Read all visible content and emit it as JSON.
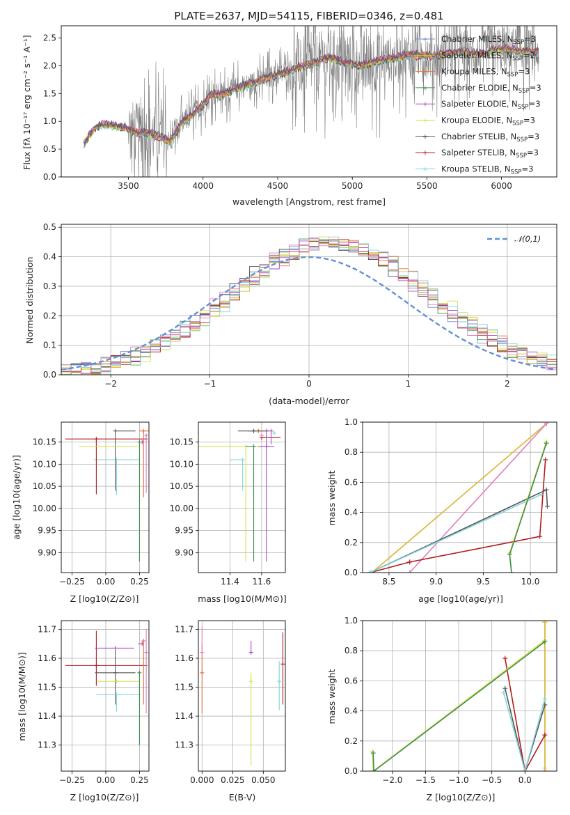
{
  "colors": {
    "chabrier_miles": "#6c8ed6",
    "salpeter_miles": "#d9c23a",
    "kroupa_miles": "#e0703a",
    "chabrier_elodie": "#3f8f52",
    "salpeter_elodie": "#a64bc4",
    "kroupa_elodie": "#d6e04a",
    "chabrier_stelib": "#555555",
    "salpeter_stelib": "#b01c1c",
    "kroupa_stelib": "#7fd6df",
    "pink": "#e07fb8",
    "data_grey": "#808080",
    "normal_curve": "#6190d6",
    "grid": "#b0b0b0"
  },
  "chart_data": [
    {
      "id": "spectrum",
      "type": "line",
      "title": "PLATE=2637, MJD=54115, FIBERID=0346, z=0.481",
      "xlabel": "wavelength [Angstrom, rest frame]",
      "ylabel": "Flux [fλ 10⁻¹⁷ erg cm⁻² s⁻¹ A⁻¹]",
      "xlim": [
        3050,
        6370
      ],
      "ylim": [
        0,
        2.72
      ],
      "xticks": [
        3500,
        4000,
        4500,
        5000,
        5500,
        6000
      ],
      "yticks": [
        0.0,
        0.5,
        1.0,
        1.5,
        2.0,
        2.5
      ],
      "grid": false,
      "legend_position": "right",
      "legend": [
        "Chabrier MILES, N_SSP=3",
        "Salpeter MILES, N_SSP=2",
        "Kroupa MILES, N_SSP=3",
        "Chabrier ELODIE, N_SSP=3",
        "Salpeter ELODIE, N_SSP=3",
        "Kroupa ELODIE, N_SSP=3",
        "Chabrier STELIB, N_SSP=3",
        "Salpeter STELIB, N_SSP=3",
        "Kroupa STELIB, N_SSP=3"
      ],
      "continuum": {
        "x": [
          3200,
          3240,
          3280,
          3330,
          3400,
          3480,
          3560,
          3640,
          3720,
          3780,
          3850,
          3930,
          4000,
          4060,
          4150,
          4250,
          4350,
          4450,
          4550,
          4650,
          4750,
          4850,
          4950,
          5050,
          5150,
          5250,
          5350,
          5450,
          5550,
          5650,
          5750,
          5850,
          5950,
          6050,
          6150,
          6250
        ],
        "y": [
          0.58,
          0.75,
          0.88,
          0.95,
          0.92,
          0.88,
          0.8,
          0.78,
          0.72,
          0.62,
          0.95,
          1.12,
          1.3,
          1.48,
          1.5,
          1.62,
          1.7,
          1.8,
          1.88,
          1.98,
          2.05,
          2.15,
          2.05,
          2.0,
          2.08,
          2.12,
          2.18,
          2.2,
          2.18,
          2.22,
          2.25,
          2.2,
          2.28,
          2.3,
          2.25,
          2.25
        ]
      }
    },
    {
      "id": "residuals",
      "type": "line",
      "xlabel": "(data-model)/error",
      "ylabel": "Normed distribution",
      "xlim": [
        -2.5,
        2.5
      ],
      "ylim": [
        0,
        0.51
      ],
      "xticks": [
        -2,
        -1,
        0,
        1,
        2
      ],
      "yticks": [
        0.0,
        0.1,
        0.2,
        0.3,
        0.4,
        0.5
      ],
      "grid": true,
      "legend_position": "top-right",
      "legend": [
        "𝒩(0,1)"
      ],
      "normal": {
        "mean": 0,
        "sigma": 1
      }
    },
    {
      "id": "age_vs_Z",
      "type": "scatter",
      "xlabel": "Z [log10(Z/Z⊙)]",
      "ylabel": "age  [log10(age/yr)]",
      "xlim": [
        -0.33,
        0.32
      ],
      "ylim": [
        9.855,
        10.195
      ],
      "xticks": [
        -0.25,
        0.0,
        0.25
      ],
      "yticks": [
        9.9,
        9.95,
        10.0,
        10.05,
        10.1,
        10.15
      ],
      "grid": true
    },
    {
      "id": "age_vs_mass",
      "type": "scatter",
      "xlabel": "mass [log10(M/M⊙)]",
      "ylabel": "",
      "xlim": [
        11.2,
        11.75
      ],
      "ylim": [
        9.855,
        10.195
      ],
      "xticks": [
        11.4,
        11.6
      ],
      "yticks": [
        9.9,
        9.95,
        10.0,
        10.05,
        10.1,
        10.15
      ],
      "grid": true
    },
    {
      "id": "weight_vs_age",
      "type": "line",
      "xlabel": "age  [log10(age/yr)]",
      "ylabel": "mass weight",
      "xlim": [
        8.22,
        10.28
      ],
      "ylim": [
        0,
        1.0
      ],
      "xticks": [
        8.5,
        9.0,
        9.5,
        10.0
      ],
      "yticks": [
        0.0,
        0.2,
        0.4,
        0.6,
        0.8,
        1.0
      ],
      "grid": true
    },
    {
      "id": "mass_vs_Z",
      "type": "scatter",
      "xlabel": "Z [log10(Z/Z⊙)]",
      "ylabel": "mass [log10(M/M⊙)]",
      "xlim": [
        -0.33,
        0.32
      ],
      "ylim": [
        11.21,
        11.73
      ],
      "xticks": [
        -0.25,
        0.0,
        0.25
      ],
      "yticks": [
        11.3,
        11.4,
        11.5,
        11.6,
        11.7
      ],
      "grid": true
    },
    {
      "id": "mass_vs_ebv",
      "type": "scatter",
      "xlabel": "E(B-V)",
      "ylabel": "",
      "xlim": [
        -0.003,
        0.068
      ],
      "ylim": [
        11.21,
        11.73
      ],
      "xticks": [
        0.0,
        0.025,
        0.05
      ],
      "yticks": [
        11.3,
        11.4,
        11.5,
        11.6,
        11.7
      ],
      "grid": true
    },
    {
      "id": "weight_vs_Z",
      "type": "line",
      "xlabel": "Z [log10(Z/Z⊙)]",
      "ylabel": "mass weight",
      "xlim": [
        -2.45,
        0.48
      ],
      "ylim": [
        0,
        1.0
      ],
      "xticks": [
        -2.0,
        -1.5,
        -1.0,
        -0.5,
        0.0
      ],
      "yticks": [
        0.0,
        0.2,
        0.4,
        0.6,
        0.8,
        1.0
      ],
      "grid": true
    }
  ],
  "model_points": {
    "age_vs_Z": [
      {
        "c": "kroupa_stelib",
        "x": 0.08,
        "y": 10.11,
        "xerr": [
          0.17,
          0.17
        ],
        "yerr": [
          0.08,
          0.0
        ]
      },
      {
        "c": "chabrier_stelib",
        "x": 0.07,
        "y": 10.175,
        "xerr": [
          0.0,
          0.15
        ],
        "yerr": [
          0.135,
          0.0
        ]
      },
      {
        "c": "salpeter_stelib",
        "x": -0.07,
        "y": 10.157,
        "xerr": [
          0.23,
          0.38
        ],
        "yerr": [
          0.125,
          0.0
        ]
      },
      {
        "c": "kroupa_elodie",
        "x": 0.0,
        "y": 10.14,
        "xerr": [
          0.2,
          0.25
        ],
        "yerr": [
          0.0,
          0.0
        ]
      },
      {
        "c": "chabrier_elodie",
        "x": 0.25,
        "y": 10.15,
        "xerr": [
          0.0,
          0.0
        ],
        "yerr": [
          0.27,
          0.0
        ]
      },
      {
        "c": "kroupa_miles",
        "x": 0.28,
        "y": 10.175,
        "xerr": [
          0.03,
          0.04
        ],
        "yerr": [
          0.15,
          0.0
        ]
      },
      {
        "c": "pink",
        "x": 0.3,
        "y": 10.165,
        "xerr": [
          0.0,
          0.0
        ],
        "yerr": [
          0.13,
          0.0
        ]
      },
      {
        "c": "salpeter_elodie",
        "x": 0.27,
        "y": 10.15,
        "xerr": [
          0.0,
          0.0
        ],
        "yerr": [
          0.0,
          0.0
        ]
      }
    ],
    "age_vs_mass": [
      {
        "c": "kroupa_miles",
        "x": 11.58,
        "y": 10.175,
        "xerr": [
          0.07,
          0.06
        ],
        "yerr": [
          0.0,
          0.0
        ]
      },
      {
        "c": "salpeter_stelib",
        "x": 11.6,
        "y": 10.16,
        "xerr": [
          0.0,
          0.12
        ],
        "yerr": [
          0.0,
          0.0
        ]
      },
      {
        "c": "chabrier_stelib",
        "x": 11.55,
        "y": 10.175,
        "xerr": [
          0.1,
          0.1
        ],
        "yerr": [
          0.0,
          0.0
        ]
      },
      {
        "c": "kroupa_elodie",
        "x": 11.5,
        "y": 10.14,
        "xerr": [
          0.3,
          0.12
        ],
        "yerr": [
          0.26,
          0.0
        ]
      },
      {
        "c": "chabrier_elodie",
        "x": 11.55,
        "y": 10.14,
        "xerr": [
          0.05,
          0.0
        ],
        "yerr": [
          0.26,
          0.0
        ]
      },
      {
        "c": "kroupa_stelib",
        "x": 11.48,
        "y": 10.11,
        "xerr": [
          0.08,
          0.0
        ],
        "yerr": [
          0.07,
          0.0
        ]
      },
      {
        "c": "salpeter_elodie",
        "x": 11.63,
        "y": 10.14,
        "xerr": [
          0.05,
          0.05
        ],
        "yerr": [
          0.26,
          0.04
        ]
      },
      {
        "c": "salpeter_elodie",
        "x": 11.66,
        "y": 10.175,
        "xerr": [
          0.0,
          0.0
        ],
        "yerr": [
          0.03,
          0.0
        ]
      },
      {
        "c": "pink",
        "x": 11.6,
        "y": 10.165,
        "xerr": [
          0.0,
          0.0
        ],
        "yerr": [
          0.0,
          0.0
        ]
      },
      {
        "c": "kroupa_stelib",
        "x": 11.68,
        "y": 10.17,
        "xerr": [
          0.0,
          0.0
        ],
        "yerr": [
          0.0,
          0.0
        ]
      }
    ],
    "mass_vs_Z": [
      {
        "c": "salpeter_stelib",
        "x": -0.07,
        "y": 11.575,
        "xerr": [
          0.23,
          0.38
        ],
        "yerr": [
          0.07,
          0.12
        ]
      },
      {
        "c": "salpeter_elodie",
        "x": 0.07,
        "y": 11.635,
        "xerr": [
          0.15,
          0.14
        ],
        "yerr": [
          0.0,
          0.0
        ]
      },
      {
        "c": "chabrier_stelib",
        "x": 0.07,
        "y": 11.55,
        "xerr": [
          0.15,
          0.15
        ],
        "yerr": [
          0.11,
          0.08
        ]
      },
      {
        "c": "kroupa_elodie",
        "x": 0.08,
        "y": 11.52,
        "xerr": [
          0.14,
          0.17
        ],
        "yerr": [
          0.0,
          0.0
        ]
      },
      {
        "c": "kroupa_stelib",
        "x": 0.08,
        "y": 11.475,
        "xerr": [
          0.15,
          0.17
        ],
        "yerr": [
          0.06,
          0.0
        ]
      },
      {
        "c": "chabrier_elodie",
        "x": 0.25,
        "y": 11.55,
        "xerr": [
          0.0,
          0.0
        ],
        "yerr": [
          0.25,
          0.0
        ]
      },
      {
        "c": "salpeter_elodie",
        "x": 0.27,
        "y": 11.65,
        "xerr": [
          0.03,
          0.0
        ],
        "yerr": [
          0.0,
          0.0
        ]
      },
      {
        "c": "kroupa_miles",
        "x": 0.28,
        "y": 11.66,
        "xerr": [
          0.0,
          0.0
        ],
        "yerr": [
          0.22,
          0.0
        ]
      },
      {
        "c": "pink",
        "x": 0.3,
        "y": 11.62,
        "xerr": [
          0.0,
          0.0
        ],
        "yerr": [
          0.21,
          0.08
        ]
      }
    ],
    "mass_vs_ebv": [
      {
        "c": "kroupa_miles",
        "x": 0.0,
        "y": 11.55,
        "xerr": [
          0.0,
          0.0
        ],
        "yerr": [
          0.14,
          0.1
        ]
      },
      {
        "c": "pink",
        "x": 0.0,
        "y": 11.62,
        "xerr": [
          0.0,
          0.0
        ],
        "yerr": [
          0.0,
          0.09
        ]
      },
      {
        "c": "salpeter_elodie",
        "x": 0.04,
        "y": 11.62,
        "xerr": [
          0.0,
          0.0
        ],
        "yerr": [
          0.0,
          0.04
        ]
      },
      {
        "c": "kroupa_elodie",
        "x": 0.04,
        "y": 11.52,
        "xerr": [
          0.0,
          0.0
        ],
        "yerr": [
          0.29,
          0.03
        ]
      },
      {
        "c": "kroupa_stelib",
        "x": 0.063,
        "y": 11.52,
        "xerr": [
          0.0,
          0.0
        ],
        "yerr": [
          0.1,
          0.07
        ]
      },
      {
        "c": "salpeter_stelib",
        "x": 0.066,
        "y": 11.58,
        "xerr": [
          0.0,
          0.0
        ],
        "yerr": [
          0.14,
          0.11
        ]
      }
    ],
    "weight_vs_age": [
      {
        "c": "kroupa_miles",
        "pts": [
          [
            8.32,
            0.0
          ],
          [
            10.17,
            0.99
          ]
        ]
      },
      {
        "c": "salpeter_miles",
        "pts": [
          [
            8.32,
            0.0
          ],
          [
            10.17,
            0.99
          ]
        ]
      },
      {
        "c": "pink",
        "pts": [
          [
            8.72,
            0.0
          ],
          [
            10.17,
            0.99
          ]
        ]
      },
      {
        "c": "salpeter_stelib",
        "pts": [
          [
            8.3,
            0.0
          ],
          [
            8.72,
            0.07
          ],
          [
            10.1,
            0.24
          ],
          [
            10.16,
            0.75
          ]
        ]
      },
      {
        "c": "chabrier_stelib",
        "pts": [
          [
            8.3,
            0.0
          ],
          [
            10.17,
            0.55
          ],
          [
            10.18,
            0.44
          ]
        ]
      },
      {
        "c": "kroupa_stelib",
        "pts": [
          [
            8.3,
            0.0
          ],
          [
            10.12,
            0.52
          ]
        ]
      },
      {
        "c": "kroupa_elodie",
        "pts": [
          [
            9.8,
            0.0
          ],
          [
            9.78,
            0.13
          ],
          [
            10.17,
            0.87
          ]
        ]
      },
      {
        "c": "chabrier_elodie",
        "pts": [
          [
            9.8,
            0.0
          ],
          [
            9.78,
            0.12
          ],
          [
            10.17,
            0.86
          ]
        ]
      }
    ],
    "weight_vs_Z": [
      {
        "c": "kroupa_miles",
        "pts": [
          [
            0.3,
            0.0
          ],
          [
            0.3,
            0.99
          ]
        ]
      },
      {
        "c": "salpeter_miles",
        "pts": [
          [
            0.3,
            0.02
          ],
          [
            0.3,
            0.99
          ]
        ]
      },
      {
        "c": "salpeter_stelib",
        "pts": [
          [
            -0.3,
            0.75
          ],
          [
            0.0,
            0.0
          ],
          [
            0.3,
            0.24
          ]
        ]
      },
      {
        "c": "chabrier_stelib",
        "pts": [
          [
            -0.3,
            0.55
          ],
          [
            0.0,
            0.0
          ],
          [
            0.3,
            0.44
          ]
        ]
      },
      {
        "c": "kroupa_stelib",
        "pts": [
          [
            -0.32,
            0.52
          ],
          [
            0.0,
            0.0
          ],
          [
            0.3,
            0.48
          ]
        ]
      },
      {
        "c": "kroupa_elodie",
        "pts": [
          [
            -2.3,
            0.13
          ],
          [
            -2.29,
            0.0
          ],
          [
            0.3,
            0.87
          ]
        ]
      },
      {
        "c": "chabrier_elodie",
        "pts": [
          [
            -2.29,
            0.12
          ],
          [
            -2.28,
            0.0
          ],
          [
            0.3,
            0.86
          ]
        ]
      }
    ]
  }
}
